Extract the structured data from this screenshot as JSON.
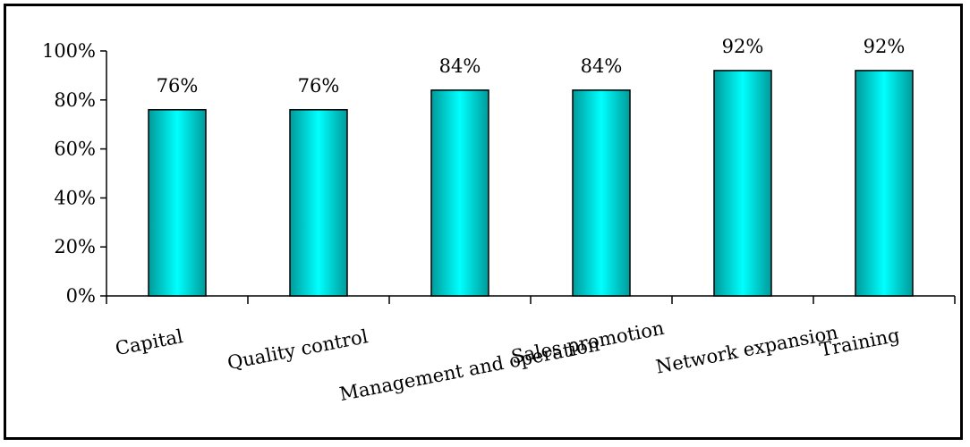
{
  "chart_data": {
    "type": "bar",
    "title": "",
    "xlabel": "",
    "ylabel": "",
    "categories": [
      "Capital",
      "Quality control",
      "Management and operation",
      "Sales promotion",
      "Network expansion",
      "Training"
    ],
    "values": [
      76,
      76,
      84,
      84,
      92,
      92
    ],
    "value_labels": [
      "76%",
      "76%",
      "84%",
      "84%",
      "92%",
      "92%"
    ],
    "ylim": [
      0,
      100
    ],
    "y_ticks": [
      0,
      20,
      40,
      60,
      80,
      100
    ],
    "y_tick_labels": [
      "0%",
      "20%",
      "40%",
      "60%",
      "80%",
      "100%"
    ],
    "grid": false,
    "legend": "none",
    "colors": {
      "bar_light": "#00ffff",
      "bar_dark": "#009a9a",
      "bar_outline": "#000000",
      "axis": "#000000",
      "frame": "#000000"
    }
  }
}
